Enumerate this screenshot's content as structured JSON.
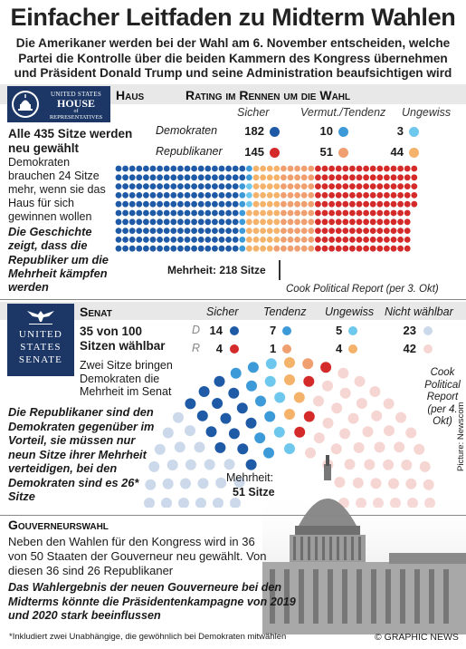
{
  "title": "Einfacher Leitfaden zu Midterm Wahlen",
  "subtitle": "Die Amerikaner werden bei der Wahl am 6. November entscheiden,  welche Partei die Kontrolle über die beiden Kammern des Kongress übernehmen und Präsident Donald Trump und seine Administration beaufsichtigen wird",
  "colors": {
    "dem_safe": "#1f5aa6",
    "dem_lean": "#3d9ad8",
    "tossup_dem": "#6ec8ee",
    "tossup_rep": "#f5b26b",
    "rep_lean": "#f0a070",
    "rep_safe": "#d42a2a",
    "not_up_dem": "#ccd9ea",
    "not_up_rep": "#f6d6d3"
  },
  "house": {
    "logo_line1": "UNITED STATES",
    "logo_line2": "HOUSE",
    "logo_line3": "of",
    "logo_line4": "REPRESENTATIVES",
    "label": "Haus",
    "rating_header": "Rating im Rennen um die Wahl",
    "col_sicher": "Sicher",
    "col_tendenz": "Vermut./Tendenz",
    "col_ungewiss": "Ungewiss",
    "row_dem": "Demokraten",
    "row_rep": "Republikaner",
    "dem_safe": "182",
    "dem_lean": "10",
    "dem_tossup": "3",
    "rep_safe": "145",
    "rep_lean": "51",
    "rep_tossup": "44",
    "seats_title": "Alle 435 Sitze werden neu gewählt",
    "seats_text": "Demokraten brauchen 24 Sitze mehr, wenn sie das Haus für sich gewinnen wollen",
    "history_text": "Die Geschichte zeigt, dass die Republiker um die Mehrheit kämpfen werden",
    "majority": "Mehrheit: 218 Sitze",
    "source": "Cook Political Report (per 3. Okt)"
  },
  "senate": {
    "logo_line1": "UNITED",
    "logo_line2": "STATES",
    "logo_line3": "SENATE",
    "label": "Senat",
    "col_sicher": "Sicher",
    "col_tendenz": "Tendenz",
    "col_ungewiss": "Ungewiss",
    "col_nicht": "Nicht wählbar",
    "row_d": "D",
    "row_r": "R",
    "d_safe": "14",
    "d_lean": "7",
    "d_tossup": "5",
    "d_notup": "23",
    "r_safe": "4",
    "r_lean": "1",
    "r_tossup": "4",
    "r_notup": "42",
    "seats_title": "35 von 100 Sitzen wählbar",
    "flip_text": "Zwei Sitze bringen Demokraten die Mehrheit im Senat",
    "republicans_text": "Die Republikaner sind den Demokraten gegenüber im Vorteil, sie müssen nur neun Sitze ihrer Mehrheit verteidigen, bei den Demokraten sind es 26* Sitze",
    "majority_line1": "Mehrheit:",
    "majority_line2": "51 Sitze",
    "source": "Cook Political Report (per 4. Okt)"
  },
  "governor": {
    "label": "Gouverneurswahl",
    "text": "Neben den Wahlen für den Kongress wird in 36 von 50 Staaten der Gouverneur neu gewählt. Von diesen 36 sind 26 Republikaner",
    "bold_text": "Das Wahlergebnis der neuen Gouverneure bei den Midterms könnte die Präsidentenkampagne von 2019 und 2020 stark beeinflussen"
  },
  "footnote": "*Inkludiert zwei Unabhängige, die gewöhnlich bei Demokraten mitwählen",
  "credit": "© GRAPHIC NEWS",
  "picture_credit": "Picture: Newscom"
}
